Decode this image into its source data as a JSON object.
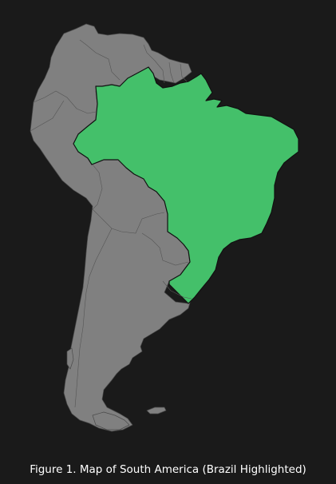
{
  "caption": "Figure 1. Map of South America (Brazil Highlighted)",
  "colors": {
    "background": "#1a1a1a",
    "land": "#808080",
    "highlight": "#44c06a",
    "highlight_border": "#111111",
    "caption_text": "#ffffff"
  },
  "map": {
    "region": "South America",
    "highlighted_country": "Brazil"
  }
}
